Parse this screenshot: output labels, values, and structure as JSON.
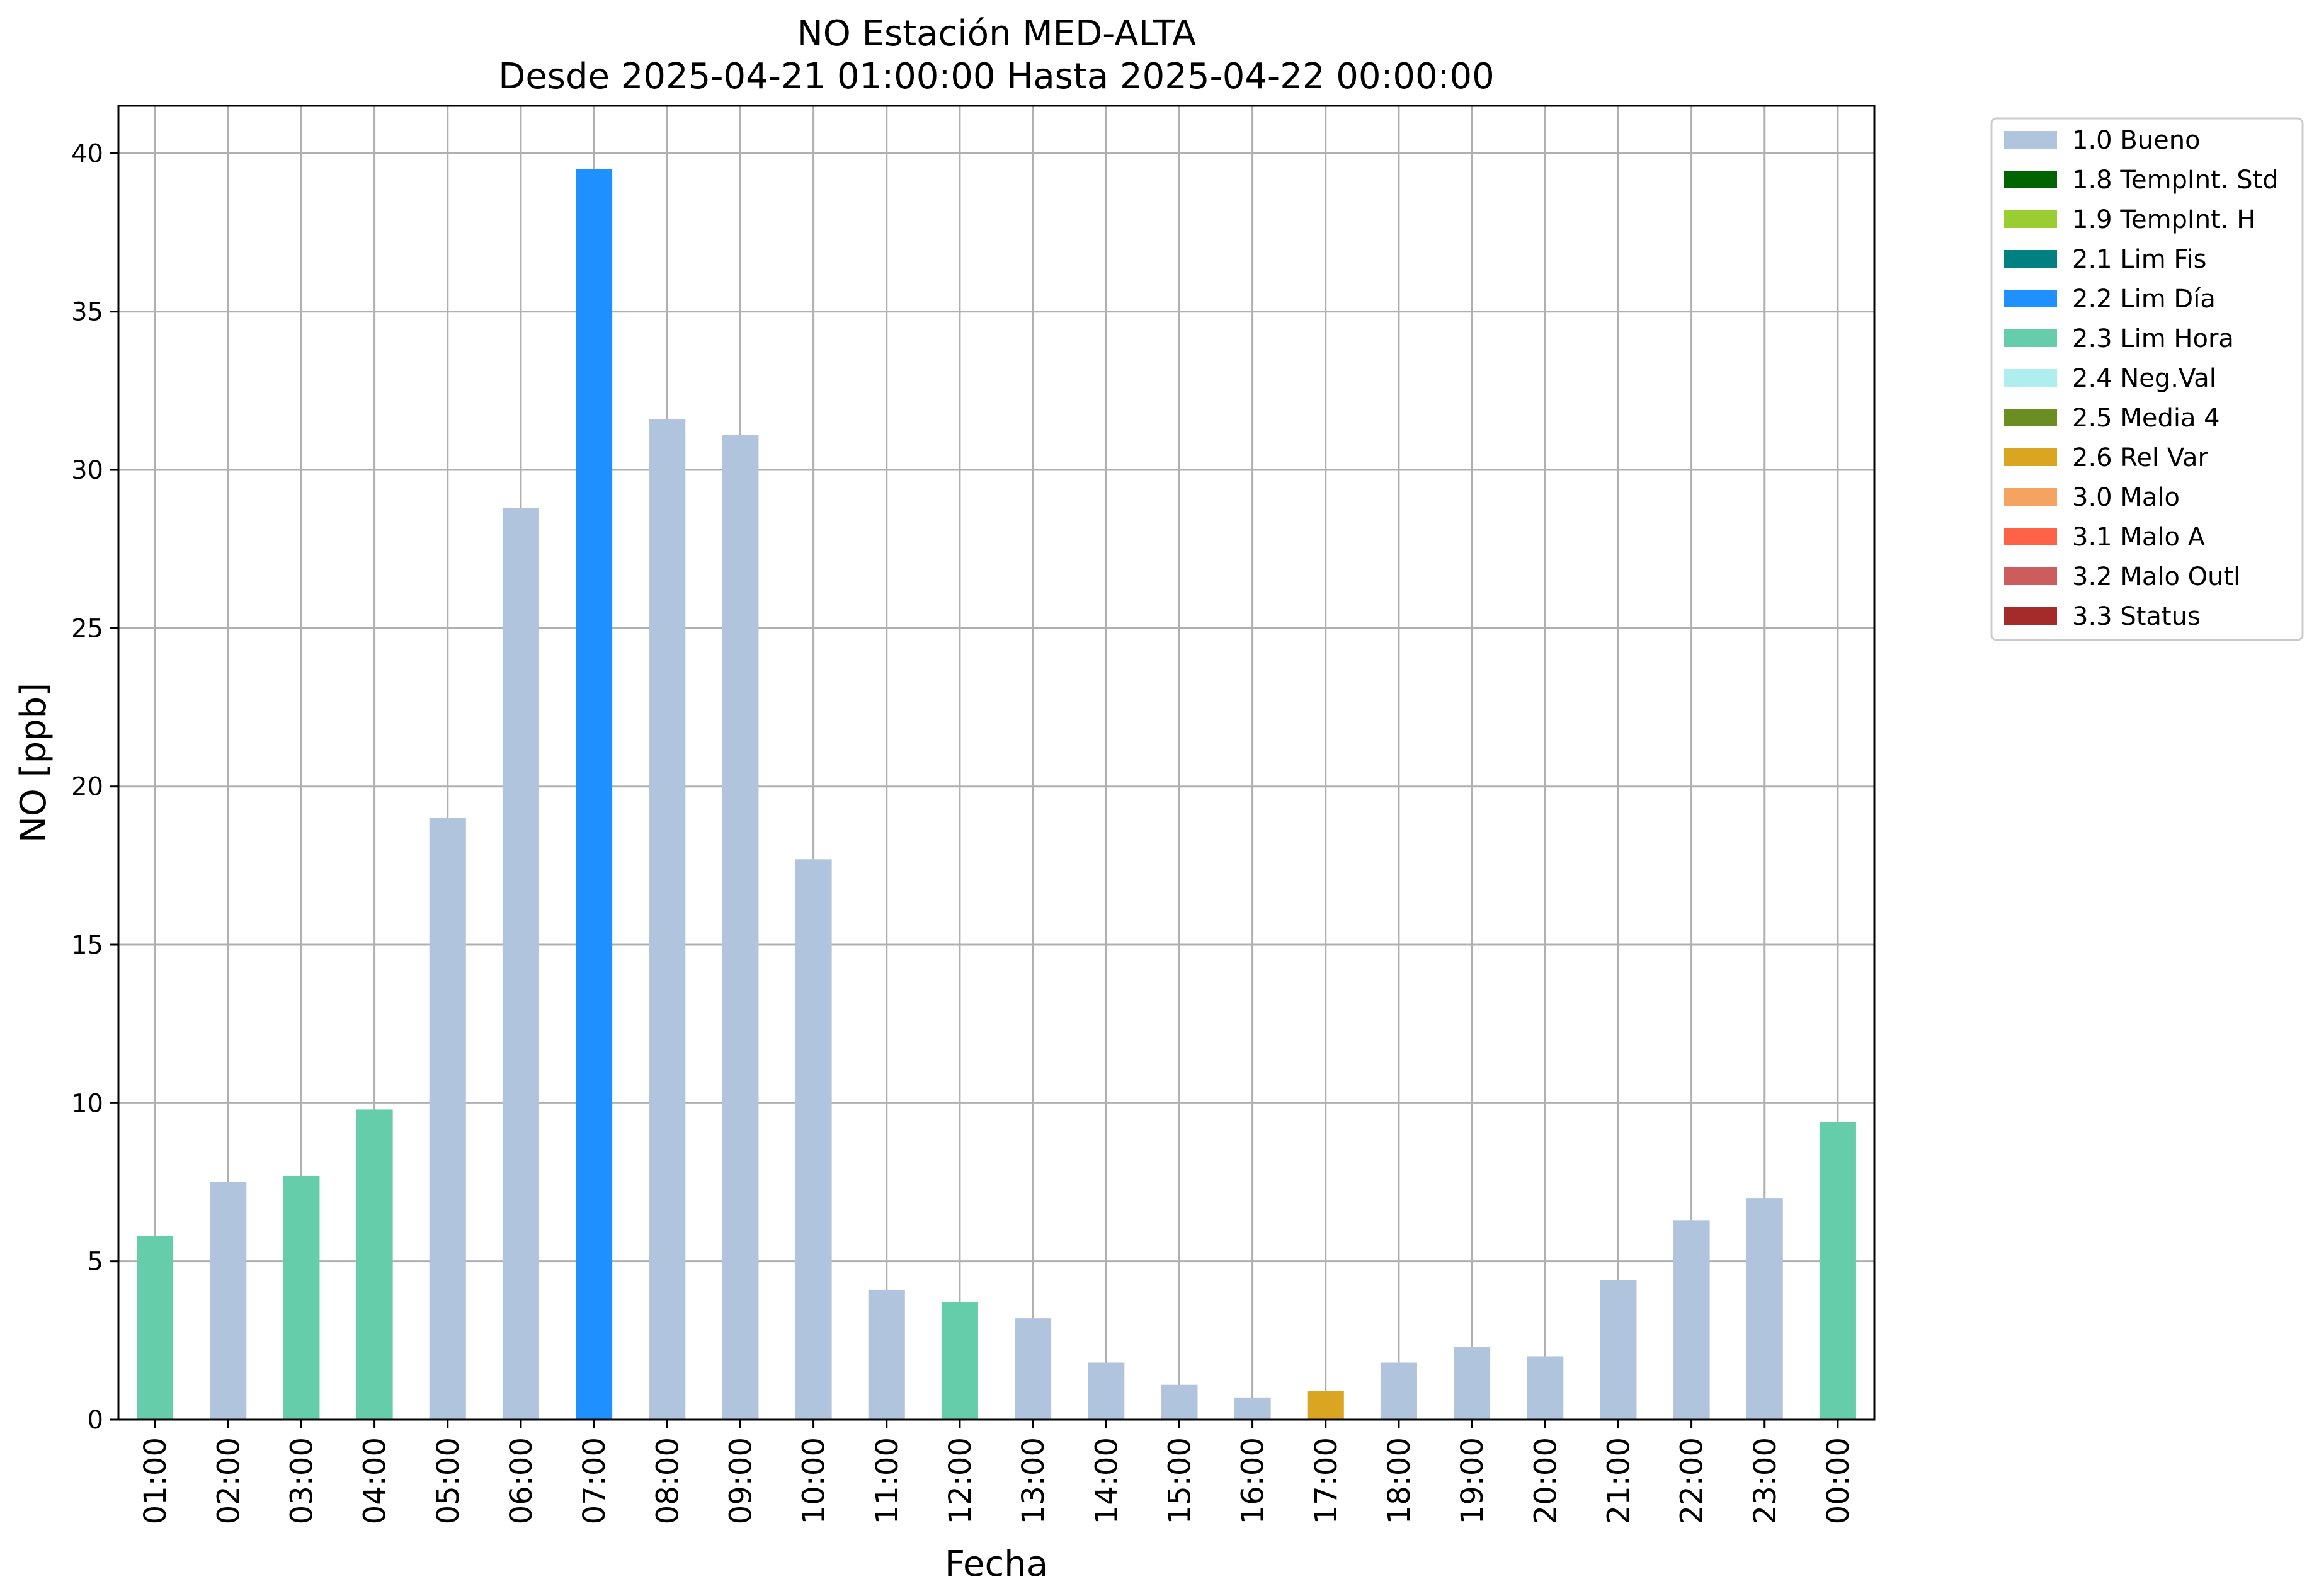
{
  "chart_data": {
    "type": "bar",
    "title": "NO Estación MED-ALTA",
    "subtitle": "Desde 2025-04-21 01:00:00 Hasta 2025-04-22 00:00:00",
    "xlabel": "Fecha",
    "ylabel": "NO [ppb]",
    "ylim": [
      0,
      41.5
    ],
    "yticks": [
      0,
      5,
      10,
      15,
      20,
      25,
      30,
      35,
      40
    ],
    "grid": true,
    "legend_position": "outside-top-right",
    "categories": [
      "01:00",
      "02:00",
      "03:00",
      "04:00",
      "05:00",
      "06:00",
      "07:00",
      "08:00",
      "09:00",
      "10:00",
      "11:00",
      "12:00",
      "13:00",
      "14:00",
      "15:00",
      "16:00",
      "17:00",
      "18:00",
      "19:00",
      "20:00",
      "21:00",
      "22:00",
      "23:00",
      "00:00"
    ],
    "values": [
      5.8,
      7.5,
      7.7,
      9.8,
      19.0,
      28.8,
      39.5,
      31.6,
      31.1,
      17.7,
      4.1,
      3.7,
      3.2,
      1.8,
      1.1,
      0.7,
      0.9,
      1.8,
      2.3,
      2.0,
      4.4,
      6.3,
      7.0,
      9.4
    ],
    "flags": [
      "2.3 Lim Hora",
      "1.0 Bueno",
      "2.3 Lim Hora",
      "2.3 Lim Hora",
      "1.0 Bueno",
      "1.0 Bueno",
      "2.2 Lim Día",
      "1.0 Bueno",
      "1.0 Bueno",
      "1.0 Bueno",
      "1.0 Bueno",
      "2.3 Lim Hora",
      "1.0 Bueno",
      "1.0 Bueno",
      "1.0 Bueno",
      "1.0 Bueno",
      "2.6 Rel Var",
      "1.0 Bueno",
      "1.0 Bueno",
      "1.0 Bueno",
      "1.0 Bueno",
      "1.0 Bueno",
      "1.0 Bueno",
      "2.3 Lim Hora"
    ],
    "legend": [
      {
        "name": "1.0 Bueno",
        "color": "#b0c4de"
      },
      {
        "name": "1.8 TempInt. Std",
        "color": "#006400"
      },
      {
        "name": "1.9 TempInt. H",
        "color": "#9acd32"
      },
      {
        "name": "2.1 Lim Fis",
        "color": "#008080"
      },
      {
        "name": "2.2 Lim Día",
        "color": "#1e90ff"
      },
      {
        "name": "2.3 Lim Hora",
        "color": "#66cdaa"
      },
      {
        "name": "2.4 Neg.Val",
        "color": "#afeeee"
      },
      {
        "name": "2.5 Media 4",
        "color": "#6b8e23"
      },
      {
        "name": "2.6 Rel Var",
        "color": "#daa520"
      },
      {
        "name": "3.0 Malo",
        "color": "#f4a460"
      },
      {
        "name": "3.1 Malo A",
        "color": "#ff6347"
      },
      {
        "name": "3.2 Malo Outl",
        "color": "#cd5c5c"
      },
      {
        "name": "3.3 Status",
        "color": "#a52a2a"
      }
    ]
  }
}
